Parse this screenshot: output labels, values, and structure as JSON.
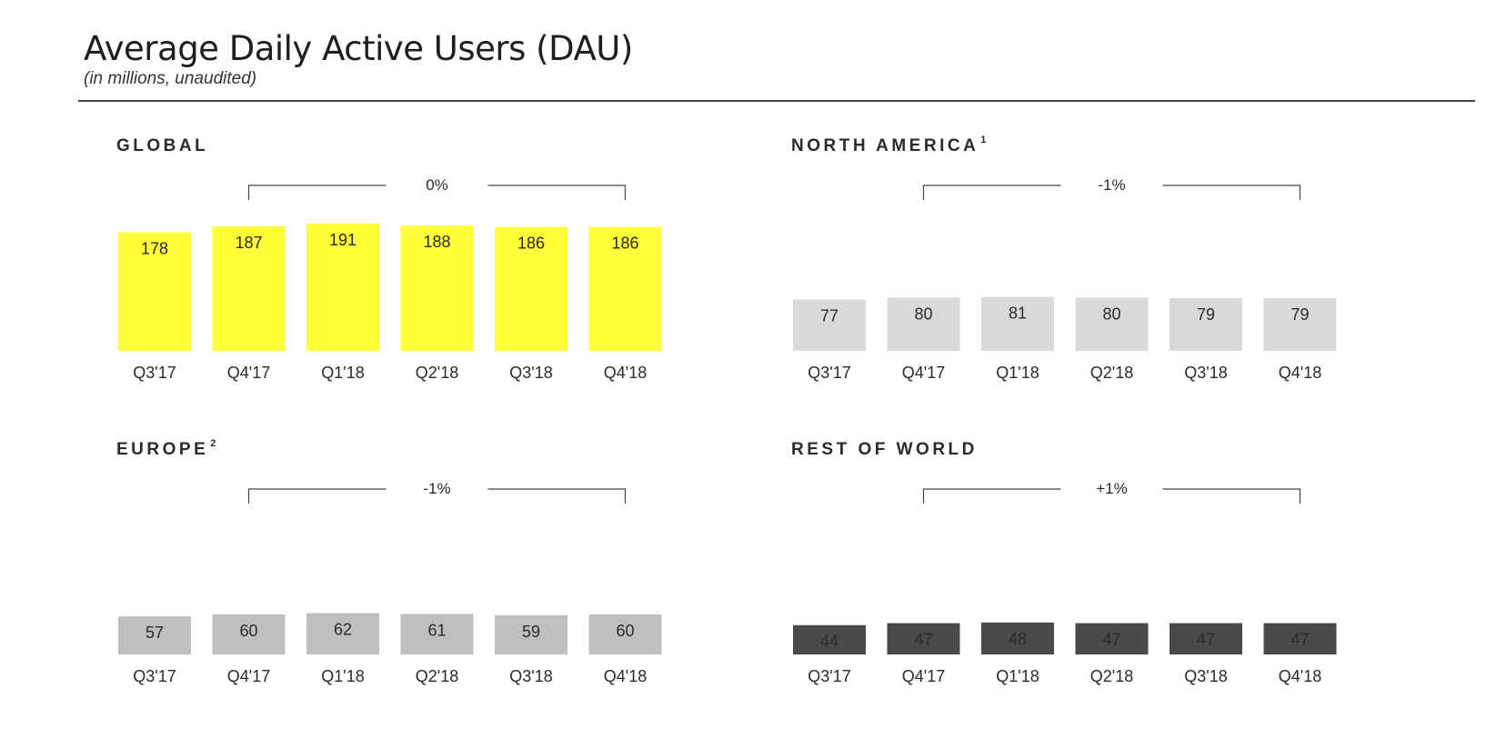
{
  "header": {
    "title": "Average Daily Active Users (DAU)",
    "subtitle": "(in millions, unaudited)"
  },
  "chart_data": [
    {
      "type": "bar",
      "title": "GLOBAL",
      "footnote": "",
      "categories": [
        "Q3'17",
        "Q4'17",
        "Q1'18",
        "Q2'18",
        "Q3'18",
        "Q4'18"
      ],
      "values": [
        178,
        187,
        191,
        188,
        186,
        186
      ],
      "bar_color": "#ffff3a",
      "label_color": "#2a2a2a",
      "change_annotation": "0%",
      "ylim": [
        0,
        191
      ]
    },
    {
      "type": "bar",
      "title": "NORTH AMERICA",
      "footnote": "1",
      "categories": [
        "Q3'17",
        "Q4'17",
        "Q1'18",
        "Q2'18",
        "Q3'18",
        "Q4'18"
      ],
      "values": [
        77,
        80,
        81,
        80,
        79,
        79
      ],
      "bar_color": "#d9d9d9",
      "label_color": "#2a2a2a",
      "change_annotation": "-1%",
      "ylim": [
        0,
        191
      ]
    },
    {
      "type": "bar",
      "title": "EUROPE",
      "footnote": "2",
      "categories": [
        "Q3'17",
        "Q4'17",
        "Q1'18",
        "Q2'18",
        "Q3'18",
        "Q4'18"
      ],
      "values": [
        57,
        60,
        62,
        61,
        59,
        60
      ],
      "bar_color": "#bfbfbf",
      "label_color": "#2a2a2a",
      "change_annotation": "-1%",
      "ylim": [
        0,
        191
      ]
    },
    {
      "type": "bar",
      "title": "REST OF WORLD",
      "footnote": "",
      "categories": [
        "Q3'17",
        "Q4'17",
        "Q1'18",
        "Q2'18",
        "Q3'18",
        "Q4'18"
      ],
      "values": [
        44,
        47,
        48,
        47,
        47,
        47
      ],
      "bar_color": "#4a4a4a",
      "label_color": "#ffffff",
      "change_annotation": "+1%",
      "ylim": [
        0,
        191
      ]
    }
  ]
}
